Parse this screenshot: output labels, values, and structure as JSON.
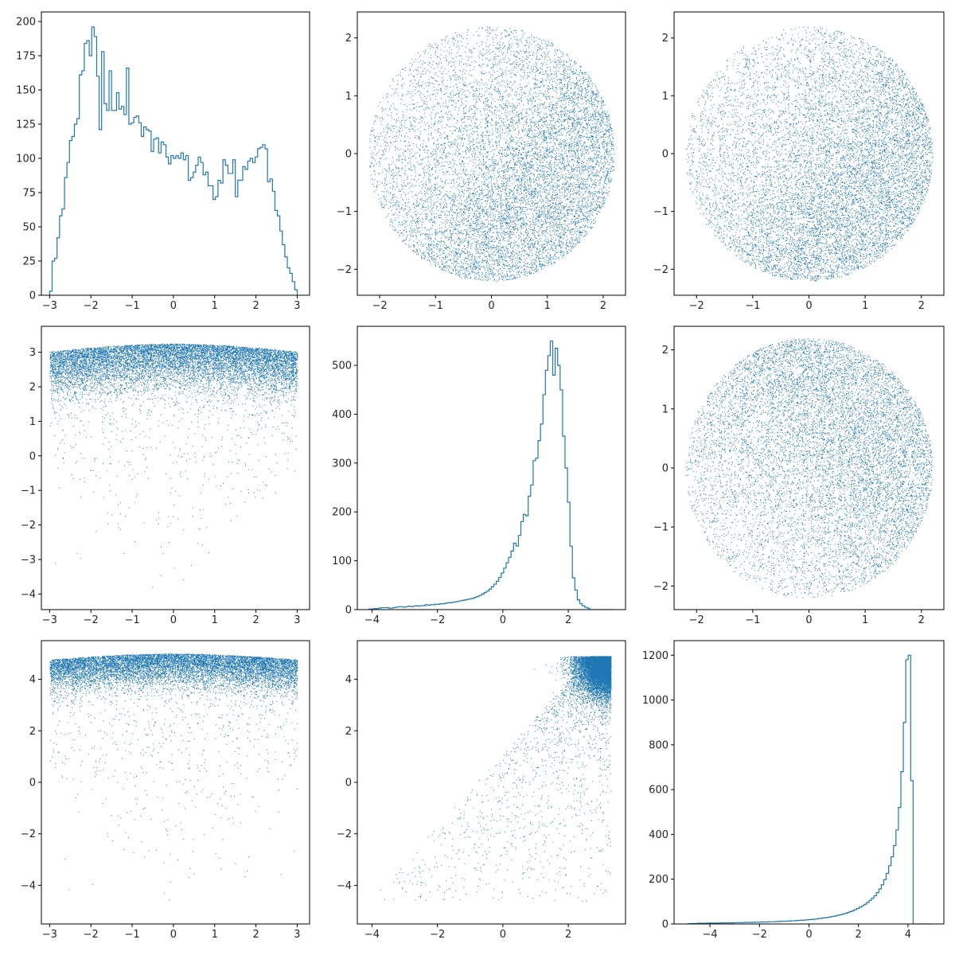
{
  "colors": {
    "series": "#1f77b4",
    "axes": "#000000",
    "text": "#262626"
  },
  "chart_data": [
    {
      "type": "histogram",
      "position": "row1-col1",
      "variable": "x",
      "xlim": [
        -3.2,
        3.3
      ],
      "ylim": [
        0,
        207
      ],
      "xticks": [
        "-3",
        "-2",
        "-1",
        "0",
        "1",
        "2",
        "3"
      ],
      "yticks": [
        "0",
        "25",
        "50",
        "75",
        "100",
        "125",
        "150",
        "175",
        "200"
      ],
      "bin_range": [
        -3.0,
        3.0
      ],
      "counts": [
        3,
        25,
        27,
        42,
        58,
        63,
        86,
        97,
        113,
        116,
        125,
        129,
        161,
        164,
        184,
        186,
        175,
        196,
        189,
        160,
        121,
        178,
        140,
        135,
        164,
        135,
        135,
        148,
        136,
        138,
        132,
        166,
        125,
        126,
        130,
        131,
        126,
        116,
        123,
        121,
        120,
        105,
        114,
        115,
        104,
        112,
        110,
        101,
        96,
        102,
        100,
        102,
        100,
        104,
        99,
        102,
        84,
        86,
        90,
        95,
        101,
        97,
        88,
        90,
        80,
        80,
        70,
        72,
        84,
        82,
        99,
        95,
        89,
        89,
        99,
        72,
        84,
        84,
        94,
        92,
        98,
        100,
        97,
        101,
        107,
        108,
        110,
        107,
        83,
        85,
        76,
        62,
        58,
        47,
        37,
        28,
        20,
        16,
        10,
        4
      ]
    },
    {
      "type": "scatter",
      "position": "row1-col2",
      "variables": [
        "y",
        "x"
      ],
      "xlim": [
        -2.4,
        2.4
      ],
      "ylim": [
        -2.45,
        2.45
      ],
      "xticks": [
        "-2",
        "-1",
        "0",
        "1",
        "2"
      ],
      "yticks": [
        "-2",
        "-1",
        "0",
        "1",
        "2"
      ],
      "point_count": 10000,
      "description_of_shape": "disk of radius ~2.2, densest on the lower-right"
    },
    {
      "type": "scatter",
      "position": "row1-col3",
      "variables": [
        "y",
        "x"
      ],
      "xlim": [
        -2.4,
        2.4
      ],
      "ylim": [
        -2.45,
        2.45
      ],
      "xticks": [
        "-2",
        "-1",
        "0",
        "1",
        "2"
      ],
      "yticks": [
        "-2",
        "-1",
        "0",
        "1",
        "2"
      ],
      "point_count": 10000,
      "description_of_shape": "disk of radius ~2.2, densest on the lower-right"
    },
    {
      "type": "scatter",
      "position": "row2-col1",
      "variables": [
        "x",
        "y"
      ],
      "xlim": [
        -3.2,
        3.3
      ],
      "ylim": [
        -4.45,
        3.75
      ],
      "xticks": [
        "-3",
        "-2",
        "-1",
        "0",
        "1",
        "2",
        "3"
      ],
      "yticks": [
        "-4",
        "-3",
        "-2",
        "-1",
        "0",
        "1",
        "2",
        "3"
      ],
      "point_count": 10000,
      "description_of_shape": "dense band near y 2-3.2, sparse tail down to -4"
    },
    {
      "type": "histogram",
      "position": "row2-col2",
      "variable": "y",
      "xlim": [
        -4.45,
        3.75
      ],
      "ylim": [
        0,
        580
      ],
      "xticks": [
        "-4",
        "-2",
        "0",
        "2"
      ],
      "yticks": [
        "0",
        "100",
        "200",
        "300",
        "400",
        "500"
      ],
      "bin_range": [
        -4.1,
        3.4
      ],
      "counts": [
        1,
        1,
        2,
        2,
        3,
        4,
        4,
        4,
        3,
        3,
        4,
        5,
        6,
        6,
        5,
        6,
        7,
        6,
        7,
        8,
        7,
        8,
        8,
        10,
        9,
        10,
        10,
        11,
        11,
        12,
        12,
        13,
        14,
        14,
        15,
        16,
        17,
        18,
        19,
        20,
        21,
        22,
        23,
        25,
        27,
        29,
        32,
        35,
        38,
        42,
        47,
        52,
        58,
        66,
        75,
        85,
        96,
        107,
        120,
        136,
        130,
        152,
        180,
        195,
        192,
        232,
        255,
        305,
        310,
        346,
        380,
        440,
        490,
        520,
        550,
        480,
        535,
        500,
        450,
        355,
        290,
        220,
        130,
        65,
        40,
        20,
        12,
        8,
        5,
        3,
        0,
        0,
        0,
        0,
        0,
        0,
        0,
        0,
        0,
        0
      ]
    },
    {
      "type": "scatter",
      "position": "row2-col3",
      "variables": [
        "y",
        "x"
      ],
      "xlim": [
        -2.4,
        2.4
      ],
      "ylim": [
        -2.4,
        2.4
      ],
      "xticks": [
        "-2",
        "-1",
        "0",
        "1",
        "2"
      ],
      "yticks": [
        "-2",
        "-1",
        "0",
        "1",
        "2"
      ],
      "point_count": 10000,
      "description_of_shape": "disk of radius ~2.2, densest on the upper-right"
    },
    {
      "type": "scatter",
      "position": "row3-col1",
      "variables": [
        "x",
        "y"
      ],
      "xlim": [
        -3.2,
        3.3
      ],
      "ylim": [
        -5.5,
        5.5
      ],
      "xticks": [
        "-3",
        "-2",
        "-1",
        "0",
        "1",
        "2",
        "3"
      ],
      "yticks": [
        "-4",
        "-2",
        "0",
        "2",
        "4"
      ],
      "point_count": 10000,
      "description_of_shape": "dense band near y 4-5, sparse tail down to -5"
    },
    {
      "type": "scatter",
      "position": "row3-col2",
      "variables": [
        "x",
        "y"
      ],
      "xlim": [
        -4.45,
        3.75
      ],
      "ylim": [
        -5.5,
        5.5
      ],
      "xticks": [
        "-4",
        "-2",
        "0",
        "2"
      ],
      "yticks": [
        "-4",
        "-2",
        "0",
        "2",
        "4"
      ],
      "point_count": 10000,
      "description_of_shape": "dense blob in upper-right (x 2-3.4, y 3-5), triangular sparse tail"
    },
    {
      "type": "histogram",
      "position": "row3-col3",
      "variable": "y",
      "xlim": [
        -5.45,
        5.45
      ],
      "ylim": [
        0,
        1265
      ],
      "xticks": [
        "-4",
        "-2",
        "0",
        "2",
        "4"
      ],
      "yticks": [
        "0",
        "200",
        "400",
        "600",
        "800",
        "1000",
        "1200"
      ],
      "bin_range": [
        -4.9,
        5.0
      ],
      "counts": [
        1,
        2,
        2,
        2,
        3,
        3,
        3,
        3,
        4,
        4,
        4,
        4,
        4,
        5,
        5,
        5,
        5,
        5,
        5,
        6,
        6,
        6,
        6,
        7,
        7,
        7,
        7,
        8,
        8,
        8,
        9,
        9,
        9,
        10,
        10,
        10,
        11,
        11,
        12,
        12,
        13,
        13,
        14,
        14,
        15,
        16,
        17,
        17,
        18,
        19,
        20,
        21,
        22,
        24,
        25,
        27,
        28,
        30,
        32,
        34,
        36,
        39,
        41,
        44,
        47,
        51,
        55,
        59,
        64,
        69,
        75,
        81,
        88,
        96,
        105,
        115,
        126,
        140,
        156,
        175,
        198,
        226,
        260,
        300,
        350,
        420,
        520,
        680,
        900,
        1180,
        1200,
        640,
        0,
        0,
        0,
        0,
        0,
        0,
        0,
        0
      ]
    }
  ]
}
